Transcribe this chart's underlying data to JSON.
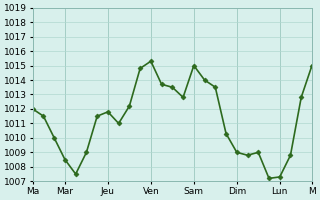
{
  "x_values": [
    0,
    1,
    2,
    3,
    4,
    5,
    6,
    7,
    8,
    9,
    10,
    11,
    12,
    13,
    14,
    15,
    16,
    17,
    18,
    19,
    20,
    21,
    22,
    23,
    24,
    25,
    26
  ],
  "y_values": [
    1012,
    1011.5,
    1010,
    1008.5,
    1007.5,
    1009,
    1011.5,
    1011.8,
    1011,
    1012.2,
    1014.8,
    1015.3,
    1013.7,
    1013.5,
    1012.8,
    1015.0,
    1014.0,
    1013.5,
    1010.3,
    1009.0,
    1008.8,
    1009.0,
    1007.2,
    1007.3,
    1008.8,
    1012.8,
    1015.0
  ],
  "x_ticks_pos": [
    0,
    3,
    7,
    11,
    15,
    19,
    23,
    26
  ],
  "x_tick_labels": [
    "Ma",
    "Mar",
    "Jeu",
    "Ven",
    "Sam",
    "Dim",
    "Lun",
    "M"
  ],
  "y_min": 1007,
  "y_max": 1019,
  "y_step": 1,
  "line_color": "#2d6a1e",
  "marker_color": "#2d6a1e",
  "bg_color": "#d8f0ec",
  "grid_color": "#b0d8d0",
  "tick_label_fontsize": 6.5,
  "line_width": 1.2,
  "marker_size": 2.5
}
